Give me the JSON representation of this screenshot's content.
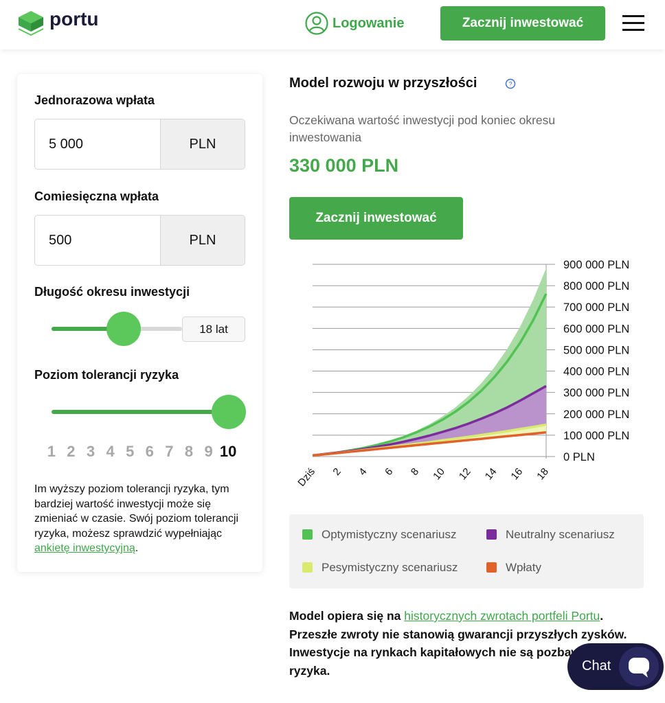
{
  "header": {
    "logo": "portu",
    "login": "Logowanie",
    "cta": "Zacznij inwestować"
  },
  "form": {
    "one_time": {
      "label": "Jednorazowa wpłata",
      "value": "5 000",
      "currency": "PLN"
    },
    "monthly": {
      "label": "Comiesięczna wpłata",
      "value": "500",
      "currency": "PLN"
    },
    "period": {
      "label": "Długość okresu inwestycji",
      "value": "18 lat"
    },
    "risk": {
      "label": "Poziom tolerancji ryzyka",
      "levels": [
        "1",
        "2",
        "3",
        "4",
        "5",
        "6",
        "7",
        "8",
        "9",
        "10"
      ],
      "selected": "10"
    },
    "note": {
      "before": "Im wyższy poziom tolerancji ryzyka, tym bardziej wartość inwestycji może się zmieniać w czasie. Swój poziom tolerancji ryzyka, możesz sprawdzić wypełniając ",
      "link": "ankietę inwestycyjną",
      "after": "."
    }
  },
  "model": {
    "title": "Model rozwoju w przyszłości",
    "subtitle": "Oczekiwana wartość inwestycji pod koniec okresu inwestowania",
    "amount": "330 000 PLN",
    "cta": "Zacznij inwestować"
  },
  "chart_data": {
    "type": "area",
    "categories": [
      "Dziś",
      null,
      "2",
      null,
      "4",
      null,
      "6",
      null,
      "8",
      null,
      "10",
      null,
      "12",
      null,
      "14",
      null,
      "16",
      null,
      "18"
    ],
    "ylim": [
      0,
      900000
    ],
    "yticks": [
      {
        "value": 0,
        "label": "0 PLN"
      },
      {
        "value": 100000,
        "label": "100 000 PLN"
      },
      {
        "value": 200000,
        "label": "200 000 PLN"
      },
      {
        "value": 300000,
        "label": "300 000 PLN"
      },
      {
        "value": 400000,
        "label": "400 000 PLN"
      },
      {
        "value": 500000,
        "label": "500 000 PLN"
      },
      {
        "value": 600000,
        "label": "600 000 PLN"
      },
      {
        "value": 700000,
        "label": "700 000 PLN"
      },
      {
        "value": 800000,
        "label": "800 000 PLN"
      },
      {
        "value": 900000,
        "label": "900 000 PLN"
      }
    ],
    "grid": true,
    "series": [
      {
        "name": "Optymistyczny scenariusz",
        "color": "#52c255",
        "fill": "#a8dca4",
        "values": [
          5000,
          12000,
          20000,
          30000,
          41000,
          55000,
          71000,
          90000,
          113000,
          140000,
          172000,
          210000,
          255000,
          308000,
          371000,
          445000,
          533000,
          638000,
          762000
        ],
        "upper": [
          5000,
          12000,
          20000,
          31000,
          42000,
          57000,
          75000,
          96000,
          121000,
          151000,
          187000,
          230000,
          282000,
          343000,
          417000,
          504000,
          608000,
          734000,
          882000
        ]
      },
      {
        "name": "Neutralny scenariusz",
        "color": "#7b2d9b",
        "fill": "#bb93cc",
        "values": [
          5000,
          12000,
          19000,
          27000,
          36000,
          46000,
          57000,
          69000,
          83000,
          98000,
          115000,
          133000,
          154000,
          177000,
          202000,
          230000,
          262000,
          296000,
          330000
        ]
      },
      {
        "name": "Pesymistyczny scenariusz",
        "color": "#d9ea70",
        "fill": "#eef5b8",
        "values": [
          5000,
          11000,
          17000,
          24000,
          31000,
          38000,
          45000,
          52000,
          60000,
          67000,
          76000,
          84000,
          92000,
          101000,
          110000,
          119000,
          129000,
          139000,
          149000
        ]
      },
      {
        "name": "Wpłaty",
        "color": "#e0622a",
        "values": [
          5000,
          11000,
          17000,
          23000,
          29000,
          35000,
          41000,
          47000,
          53000,
          59000,
          65000,
          71000,
          77000,
          83000,
          89000,
          95000,
          101000,
          107000,
          113000
        ]
      }
    ]
  },
  "disclaimer": {
    "before": "Model opiera się na ",
    "link": "historycznych zwrotach portfeli Portu",
    "after": ". Przeszłe zwroty nie stanowią gwarancji przyszłych zysków. Inwestycje na rynkach kapitałowych nie są pozbawione ryzyka."
  },
  "chat": "Chat"
}
